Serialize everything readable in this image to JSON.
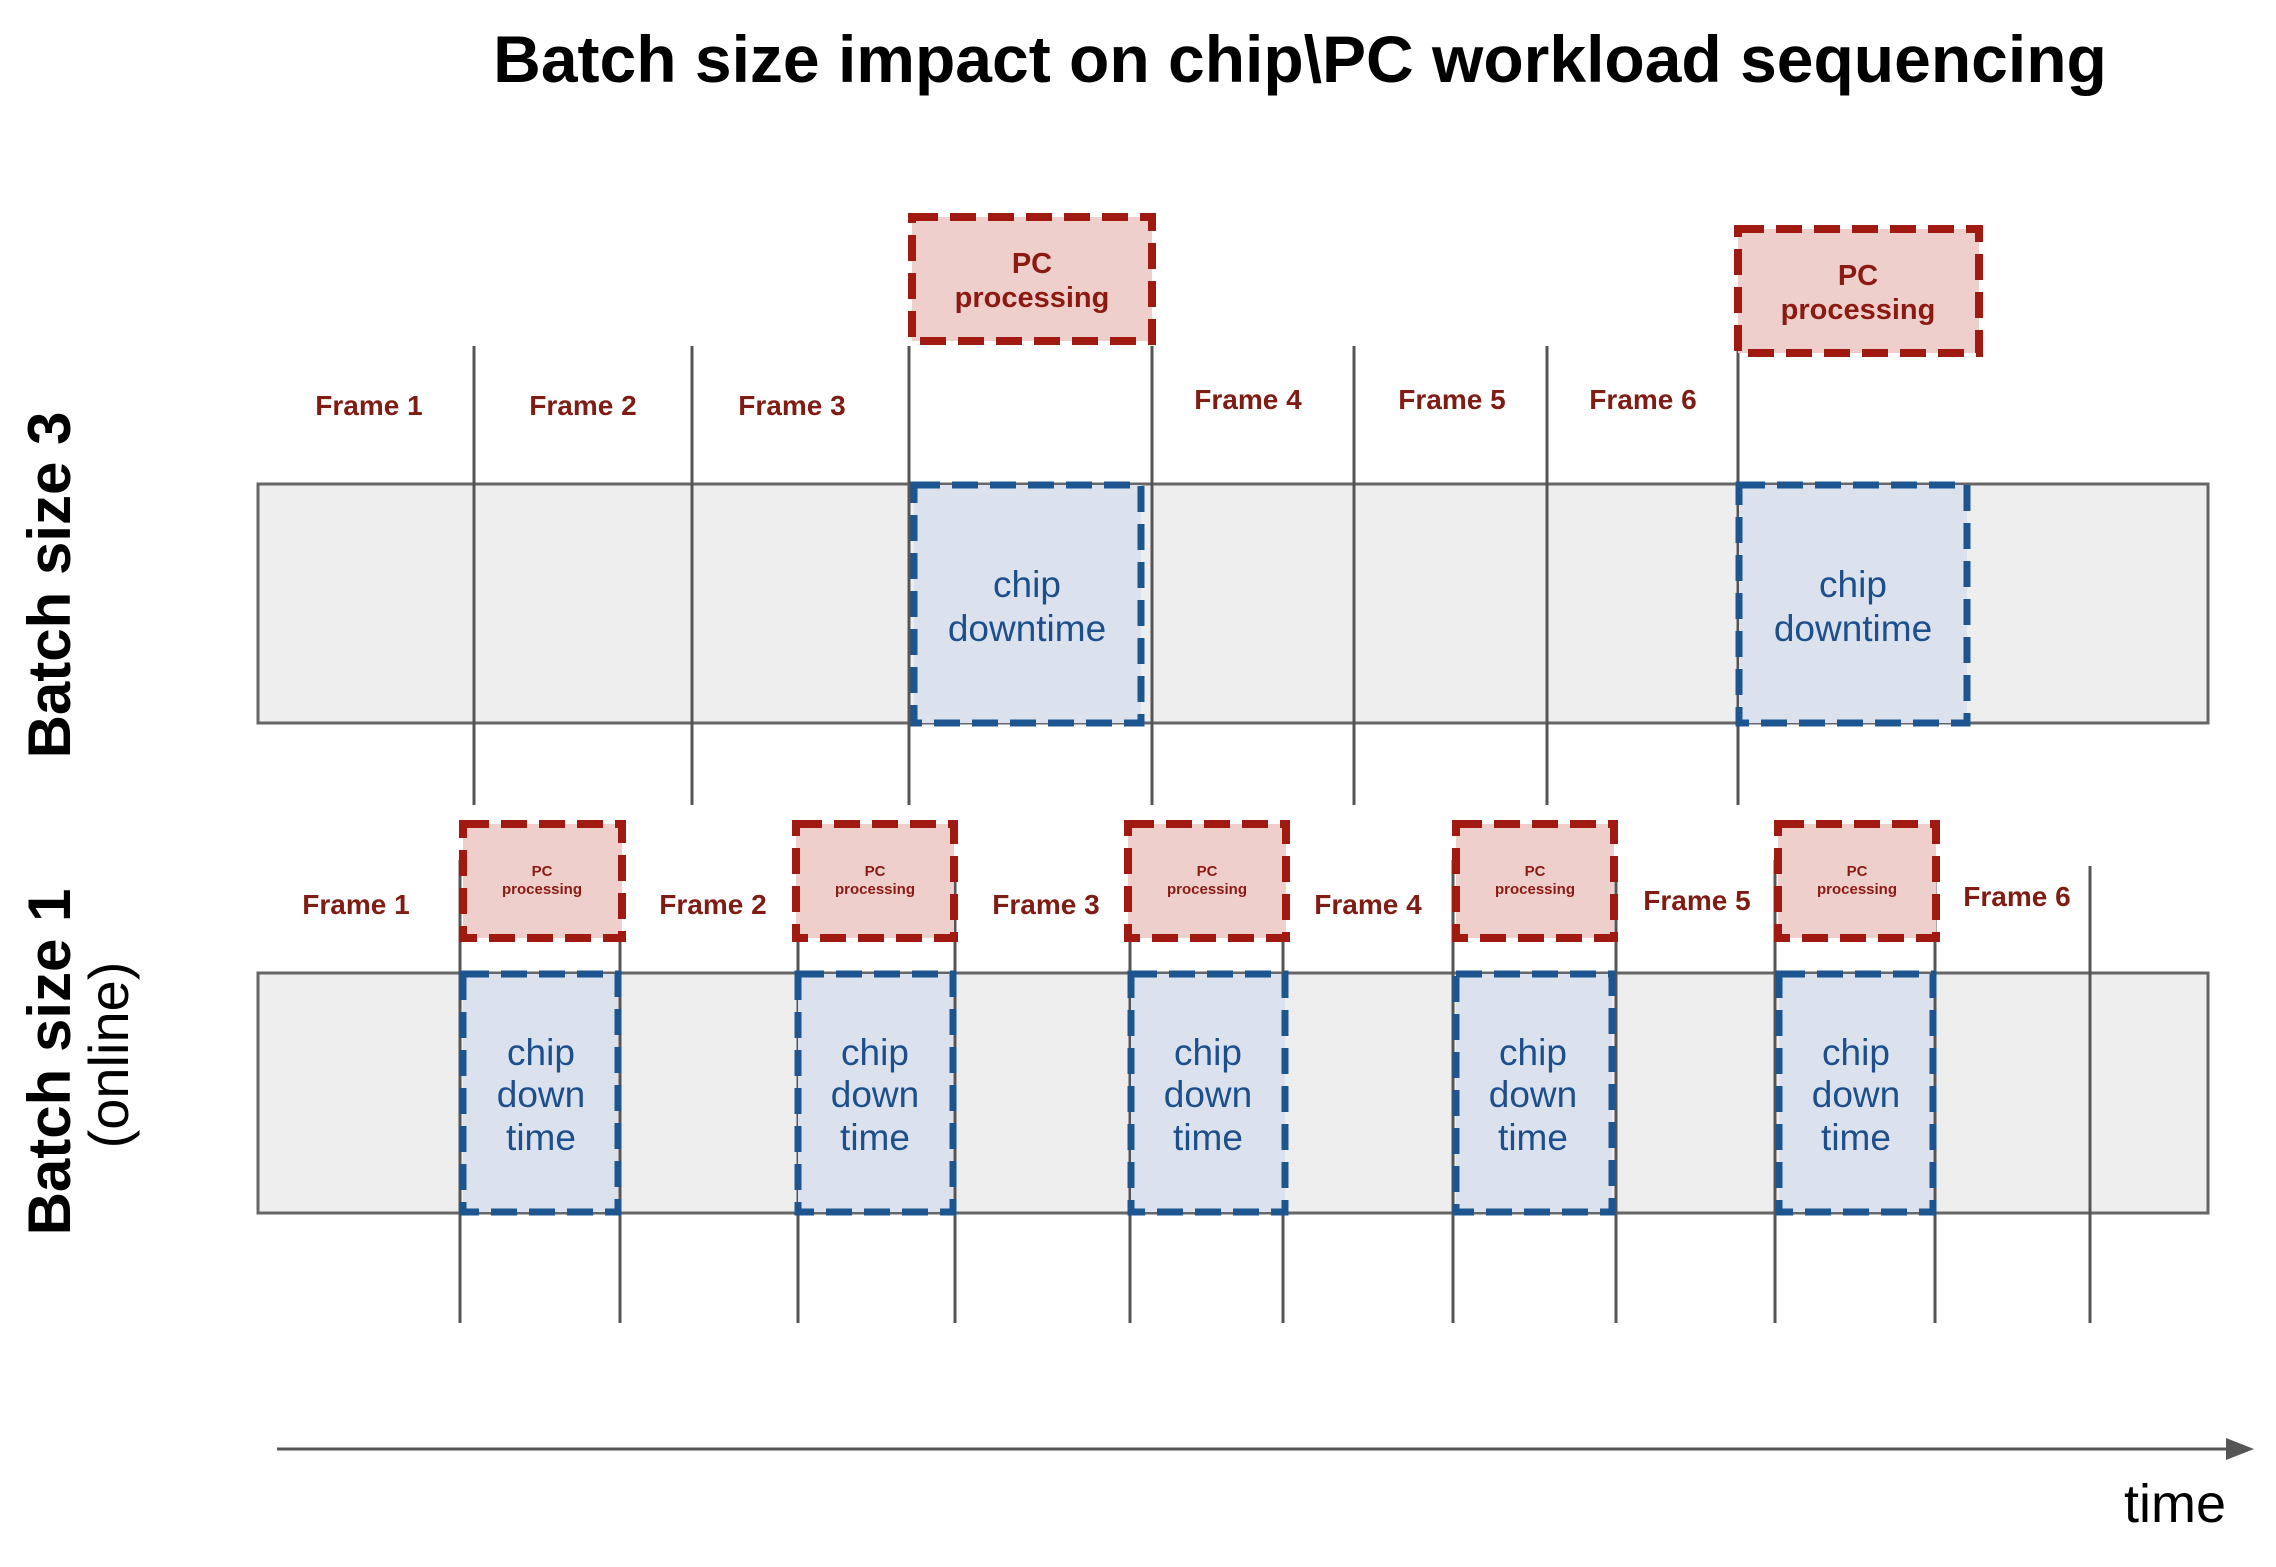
{
  "title": "Batch size impact on chip\\PC workload sequencing",
  "rows": {
    "batch3": {
      "label": "Batch size 3"
    },
    "batch1": {
      "label": "Batch size 1",
      "sublabel": "(online)"
    }
  },
  "batch3": {
    "frames": [
      "Frame 1",
      "Frame 2",
      "Frame 3",
      "Frame 4",
      "Frame 5",
      "Frame 6"
    ],
    "pc_blocks": [
      {
        "line1": "PC",
        "line2": "processing"
      },
      {
        "line1": "PC",
        "line2": "processing"
      }
    ],
    "chip_blocks": [
      {
        "line1": "chip",
        "line2": "downtime"
      },
      {
        "line1": "chip",
        "line2": "downtime"
      }
    ]
  },
  "batch1": {
    "frames": [
      "Frame 1",
      "Frame 2",
      "Frame 3",
      "Frame 4",
      "Frame 5",
      "Frame 6"
    ],
    "pc_blocks": [
      {
        "line1": "PC",
        "line2": "processing"
      },
      {
        "line1": "PC",
        "line2": "processing"
      },
      {
        "line1": "PC",
        "line2": "processing"
      },
      {
        "line1": "PC",
        "line2": "processing"
      },
      {
        "line1": "PC",
        "line2": "processing"
      }
    ],
    "chip_blocks": [
      {
        "line1": "chip",
        "line2": "down",
        "line3": "time"
      },
      {
        "line1": "chip",
        "line2": "down",
        "line3": "time"
      },
      {
        "line1": "chip",
        "line2": "down",
        "line3": "time"
      },
      {
        "line1": "chip",
        "line2": "down",
        "line3": "time"
      },
      {
        "line1": "chip",
        "line2": "down",
        "line3": "time"
      }
    ]
  },
  "axis": {
    "label": "time"
  },
  "colors": {
    "frame_text": "#7f1c13",
    "pc_fill": "#efcfcb",
    "pc_border": "#a01a12",
    "chip_fill": "#dbe2ed",
    "chip_border": "#1c558f",
    "band_fill": "#eeeeee"
  }
}
